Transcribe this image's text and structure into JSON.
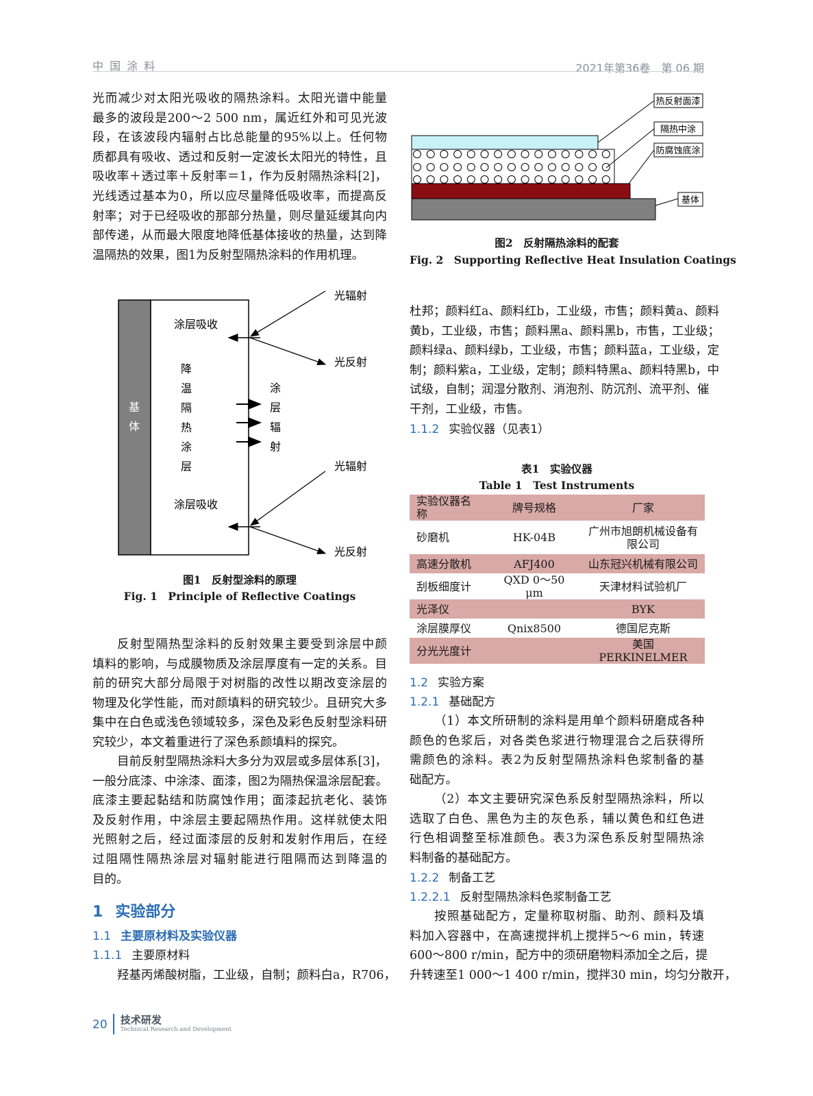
{
  "header": {
    "journal": "中 国 涂 料",
    "issue": "2021年第36卷　第 06 期"
  },
  "left": {
    "p1": [
      "光而减少对太阳光吸收的隔热涂料。太阳光谱中能量",
      "最多的波段是200～2 500 nm，属近红外和可见光波",
      "段，在该波段内辐射占比总能量的95%以上。任何物",
      "质都具有吸收、透过和反射一定波长太阳光的特性，且",
      "吸收率＋透过率＋反射率＝1，作为反射隔热涂料[2]，",
      "光线透过基本为0，所以应尽量降低吸收率，而提高反",
      "射率；对于已经吸收的那部分热量，则尽量延缓其向内",
      "部传递，从而最大限度地降低基体接收的热量，达到降",
      "温隔热的效果，图1为反射型隔热涂料的作用机理。"
    ],
    "p2": [
      "反射型隔热型涂料的反射效果主要受到涂层中颜",
      "填料的影响，与成膜物质及涂层厚度有一定的关系。目",
      "前的研究大部分局限于对树脂的改性以期改变涂层的",
      "物理及化学性能，而对颜填料的研究较少。且研究大多",
      "集中在白色或浅色领域较多，深色及彩色反射型涂料研",
      "究较少，本文着重进行了深色系颜填料的探究。"
    ],
    "p3": [
      "目前反射型隔热涂料大多分为双层或多层体系[3]，",
      "一般分底漆、中涂漆、面漆，图2为隔热保温涂层配套。",
      "底漆主要起黏结和防腐蚀作用；面漆起抗老化、装饰",
      "及反射作用，中涂层主要起隔热作用。这样就使太阳",
      "光照射之后，经过面漆层的反射和发射作用后，在经",
      "过阻隔性隔热涂层对辐射能进行阻隔而达到降温的",
      "目的。"
    ],
    "h1": {
      "num": "1",
      "title": "实验部分"
    },
    "h11": {
      "num": "1.1",
      "title": "主要原材料及实验仪器"
    },
    "h111": {
      "num": "1.1.1",
      "title": "主要原材料"
    },
    "p4": [
      "羟基丙烯酸树脂，工业级，自制；颜料白a，R706，"
    ]
  },
  "fig1": {
    "substrate": [
      "基",
      "体"
    ],
    "absorb_top": "涂层吸收",
    "absorb_bottom": "涂层吸收",
    "layer": [
      "降",
      "温",
      "隔",
      "热",
      "涂",
      "层"
    ],
    "radiation": [
      "涂",
      "层",
      "辐",
      "射"
    ],
    "light_in_top": "光辐射",
    "light_out_top": "光反射",
    "light_in_bottom": "光辐射",
    "light_out_bottom": "光反射",
    "caption_cn": "图1　反射型涂料的原理",
    "caption_en": "Fig. 1　Principle of Reflective Coatings"
  },
  "fig2": {
    "labels": {
      "top": "热反射面漆",
      "middle": "隔热中涂",
      "primer": "防腐蚀底涂",
      "base": "基体"
    },
    "colors": {
      "top": "#c8f1f6",
      "primer": "#8b0d12",
      "base": "#808080"
    },
    "caption_cn": "图2　反射隔热涂料的配套",
    "caption_en": "Fig. 2　Supporting Reflective Heat Insulation Coatings"
  },
  "right": {
    "p1": [
      "杜邦；颜料红a、颜料红b，工业级，市售；颜料黄a、颜料",
      "黄b，工业级，市售；颜料黑a、颜料黑b，市售，工业级；",
      "颜料绿a、颜料绿b，工业级，市售；颜料蓝a，工业级，定",
      "制；颜料紫a，工业级，定制；颜料特黑a、颜料特黑b，中",
      "试级，自制；润湿分散剂、消泡剂、防沉剂、流平剂、催",
      "干剂，工业级，市售。"
    ],
    "h112": {
      "num": "1.1.2",
      "title": "实验仪器（见表1）"
    },
    "h12": {
      "num": "1.2",
      "title": "实验方案"
    },
    "h121": {
      "num": "1.2.1",
      "title": "基础配方"
    },
    "p2": [
      "（1）本文所研制的涂料是用单个颜料研磨成各种",
      "颜色的色浆后，对各类色浆进行物理混合之后获得所",
      "需颜色的涂料。表2为反射型隔热涂料色浆制备的基",
      "础配方。"
    ],
    "p3": [
      "（2）本文主要研究深色系反射型隔热涂料，所以",
      "选取了白色、黑色为主的灰色系，辅以黄色和红色进",
      "行色相调整至标准颜色。表3为深色系反射型隔热涂",
      "料制备的基础配方。"
    ],
    "h122": {
      "num": "1.2.2",
      "title": "制备工艺"
    },
    "h1221": {
      "num": "1.2.2.1",
      "title": "反射型隔热涂料色浆制备工艺"
    },
    "p4": [
      "按照基础配方，定量称取树脂、助剂、颜料及填",
      "料加入容器中，在高速搅拌机上搅拌5～6 min，转速",
      "600～800 r/min，配方中的须研磨物料添加全之后，提",
      "升转速至1 000～1 400 r/min，搅拌30 min，均匀分散开，"
    ]
  },
  "table1": {
    "title_cn": "表1　实验仪器",
    "title_en": "Table 1　Test Instruments",
    "headers": [
      "实验仪器名称",
      "牌号规格",
      "厂家"
    ],
    "rows": [
      [
        "砂磨机",
        "HK-04B",
        "广州市旭朗机械设备有限公司"
      ],
      [
        "高速分散机",
        "AFJ400",
        "山东冠兴机械有限公司"
      ],
      [
        "刮板细度计",
        "QXD 0～50 μm",
        "天津材料试验机厂"
      ],
      [
        "光泽仪",
        "",
        "BYK"
      ],
      [
        "涂层膜厚仪",
        "Qnix8500",
        "德国尼克斯"
      ],
      [
        "分光光度计",
        "",
        "美国PERKINELMER"
      ]
    ],
    "header_color": "#d8a9a6"
  },
  "footer": {
    "page": "20",
    "section": "技术研发",
    "section_en": "Technical Research and Development"
  }
}
